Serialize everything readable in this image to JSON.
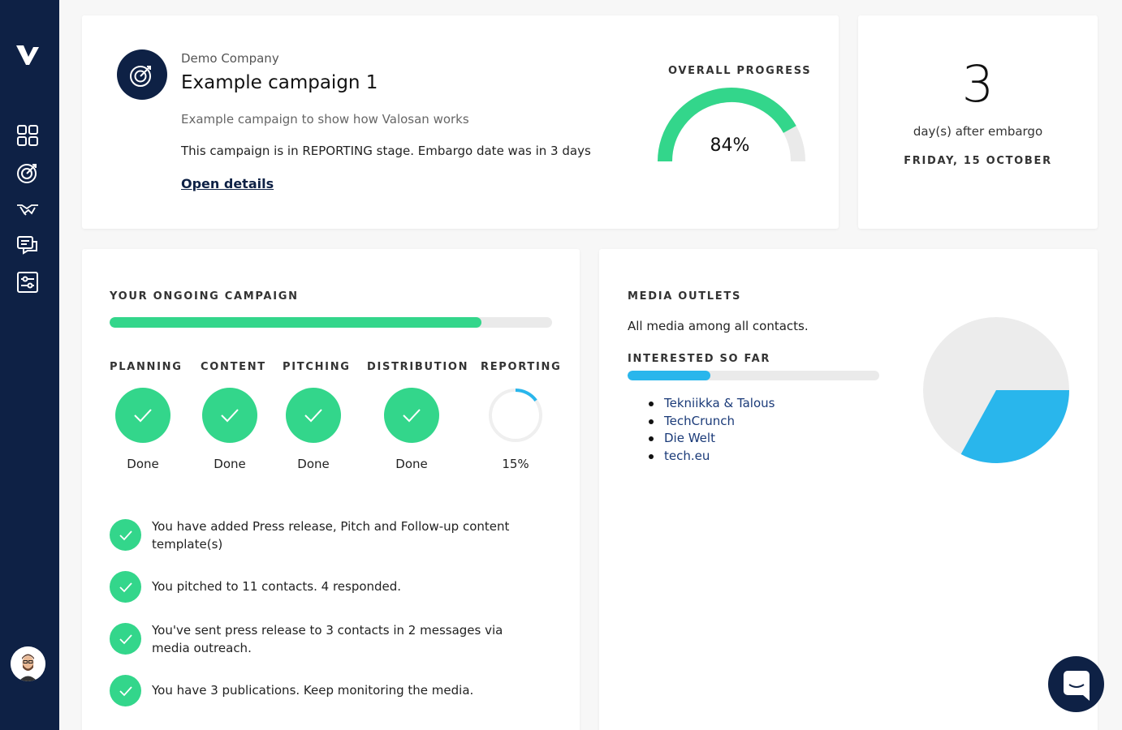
{
  "sidebar": {
    "logo": "valosan-logo",
    "nav": [
      "dashboard-grid-icon",
      "target-icon",
      "handshake-icon",
      "chat-list-icon",
      "settings-sliders-icon"
    ],
    "avatar": "user-avatar"
  },
  "campaign": {
    "company": "Demo Company",
    "title": "Example campaign 1",
    "description": "Example campaign to show how Valosan works",
    "stage_text": "This campaign is in REPORTING stage. Embargo date was in 3 days",
    "link_label": "Open details",
    "progress_label": "OVERALL PROGRESS",
    "progress_value": 84,
    "progress_text": "84%"
  },
  "embargo": {
    "days": "3",
    "subtitle": "day(s) after embargo",
    "date": "FRIDAY, 15 OCTOBER"
  },
  "ongoing": {
    "label": "YOUR ONGOING CAMPAIGN",
    "progress_fraction": 0.84,
    "stages": [
      {
        "name": "PLANNING",
        "status": "Done",
        "done": true
      },
      {
        "name": "CONTENT",
        "status": "Done",
        "done": true
      },
      {
        "name": "PITCHING",
        "status": "Done",
        "done": true
      },
      {
        "name": "DISTRIBUTION",
        "status": "Done",
        "done": true
      },
      {
        "name": "REPORTING",
        "status": "15%",
        "done": false,
        "percent": 15
      }
    ],
    "tasks": [
      "You have added Press release, Pitch and Follow-up content template(s)",
      "You pitched to 11 contacts. 4 responded.",
      "You've sent press release to 3 contacts in 2 messages via media outreach.",
      "You have 3 publications. Keep monitoring the media."
    ]
  },
  "media": {
    "label": "MEDIA OUTLETS",
    "subtitle": "All media among all contacts.",
    "interested_label": "INTERESTED SO FAR",
    "interested_fraction": 0.33,
    "outlets": [
      "Tekniikka & Talous",
      "TechCrunch",
      "Die Welt",
      "tech.eu"
    ],
    "pie_fraction": 0.33
  },
  "colors": {
    "navy": "#0e2145",
    "green": "#33d68b",
    "blue": "#29b6ec",
    "track": "#eaeaea"
  },
  "chat_button": "chat-bubble-icon"
}
